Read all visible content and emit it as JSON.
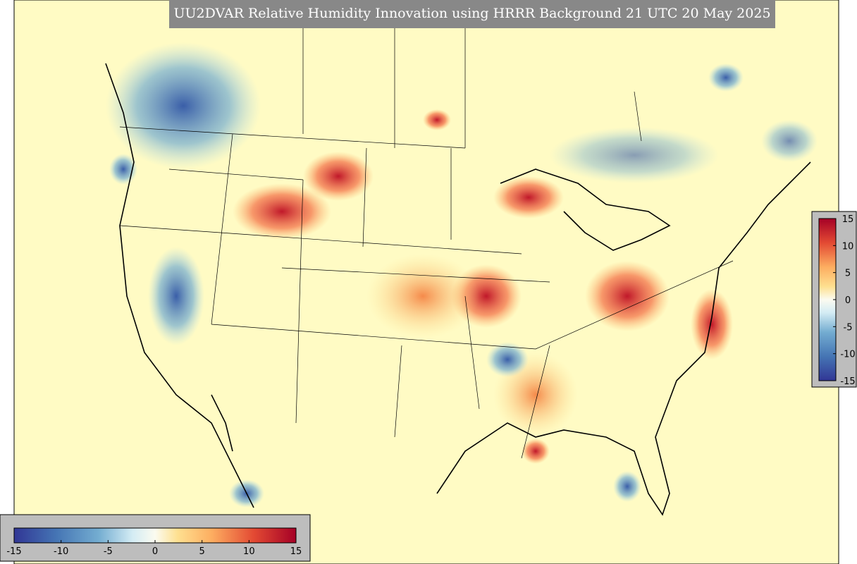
{
  "title": "UU2DVAR Relative Humidity Innovation using HRRR Background 21 UTC 20 May 2025",
  "colorbars": [
    {
      "orientation": "horizontal",
      "lim": [
        -15,
        15
      ],
      "ticks": [
        -15,
        -10,
        -5,
        0,
        5,
        10,
        15
      ]
    },
    {
      "orientation": "vertical",
      "lim": [
        -15,
        15
      ],
      "ticks": [
        -15,
        -10,
        -5,
        0,
        5,
        10,
        15
      ]
    }
  ]
}
